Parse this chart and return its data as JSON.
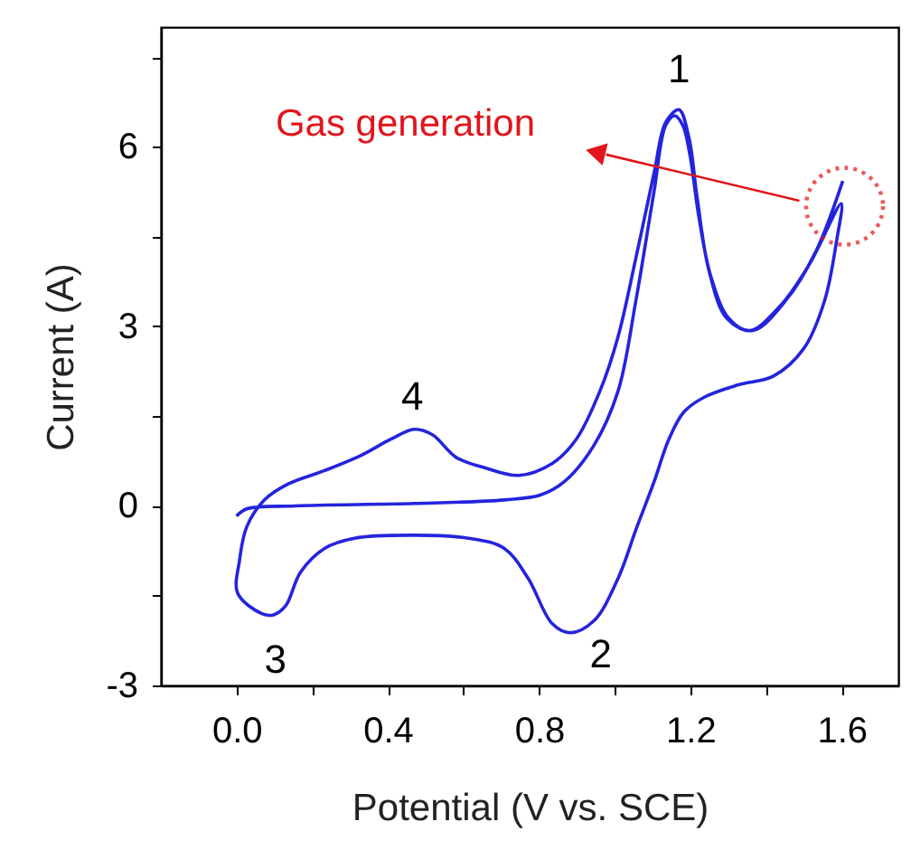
{
  "chart_data": {
    "type": "line",
    "xlabel": "Potential (V vs. SCE)",
    "ylabel": "Current (A)",
    "xlim": [
      -0.2,
      1.75
    ],
    "ylim": [
      -3,
      8
    ],
    "xticks": [
      {
        "value": 0,
        "label": "0.0"
      },
      {
        "value": 0.2,
        "label": null
      },
      0.4,
      {
        "value": 0.6,
        "label": null
      },
      0.8,
      {
        "value": 1.0,
        "label": null
      },
      1.2,
      {
        "value": 1.4,
        "label": null
      },
      1.6
    ],
    "yticks": [
      -3,
      {
        "value": -1.5,
        "label": null
      },
      0,
      {
        "value": 1.5,
        "label": null
      },
      3,
      {
        "value": 4.5,
        "label": null
      },
      6,
      {
        "value": 7.5,
        "label": null
      }
    ],
    "grid": false,
    "marker": "none",
    "line_style": "solid",
    "annotations": [
      "Gas generation",
      {
        "text": "1",
        "x": 1.17,
        "y": 6.62
      },
      {
        "text": "2",
        "x": 0.882,
        "y": -2.12
      },
      {
        "text": "3",
        "x": 0.098,
        "y": -1.82
      },
      {
        "text": "4",
        "x": 0.47,
        "y": 1.28
      }
    ],
    "series": [
      {
        "color": "#2424dd",
        "x": [
          0.0,
          0.027,
          0.154,
          0.47,
          0.708,
          0.803,
          0.866,
          0.945,
          1.009,
          1.056,
          1.104,
          1.135,
          1.159,
          1.18,
          1.199,
          1.222,
          1.254,
          1.302,
          1.357,
          1.436,
          1.515,
          1.599,
          1.587,
          1.555,
          1.5,
          1.42,
          1.325,
          1.238,
          1.183,
          1.143,
          1.104,
          1.056,
          1.009,
          0.945,
          0.882,
          0.835,
          0.771,
          0.708,
          0.613,
          0.47,
          0.312,
          0.233,
          0.169,
          0.13,
          0.098,
          0.067,
          0.003,
          0.008,
          0.027,
          0.074,
          0.138,
          0.233,
          0.328,
          0.407,
          0.47,
          0.518,
          0.581,
          0.66,
          0.747,
          0.835,
          0.898,
          0.961,
          1.009,
          1.056,
          1.104,
          1.135,
          1.17,
          1.196,
          1.218,
          1.249,
          1.297,
          1.365,
          1.452,
          1.531,
          1.603
        ],
        "values": [
          -0.17,
          -0.05,
          0.0,
          0.04,
          0.1,
          0.18,
          0.4,
          1.01,
          1.92,
          3.43,
          5.25,
          6.36,
          6.52,
          6.36,
          5.86,
          4.85,
          3.84,
          3.13,
          2.93,
          3.33,
          4.04,
          5.05,
          4.44,
          3.43,
          2.63,
          2.17,
          2.02,
          1.82,
          1.57,
          1.11,
          0.4,
          -0.4,
          -1.21,
          -1.92,
          -2.12,
          -1.97,
          -1.21,
          -0.71,
          -0.54,
          -0.49,
          -0.54,
          -0.71,
          -1.11,
          -1.67,
          -1.82,
          -1.8,
          -1.46,
          -0.91,
          -0.35,
          0.1,
          0.37,
          0.59,
          0.84,
          1.11,
          1.28,
          1.19,
          0.81,
          0.63,
          0.51,
          0.71,
          1.11,
          1.92,
          2.83,
          4.14,
          5.56,
          6.41,
          6.62,
          6.16,
          5.15,
          3.94,
          3.13,
          2.93,
          3.43,
          4.24,
          5.43
        ]
      }
    ]
  }
}
